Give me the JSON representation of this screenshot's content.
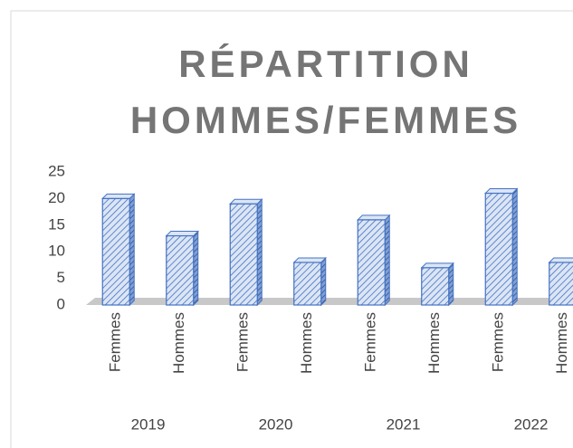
{
  "chart_data": {
    "type": "bar",
    "title": "RÉPARTITION HOMMES/FEMMES",
    "categories": [
      "Femmes",
      "Hommes",
      "Femmes",
      "Hommes",
      "Femmes",
      "Hommes",
      "Femmes",
      "Hommes"
    ],
    "groups": [
      "2019",
      "2020",
      "2021",
      "2022"
    ],
    "values": [
      20,
      13,
      19,
      8,
      16,
      7,
      21,
      8
    ],
    "color": "#4472c4",
    "ylim": [
      0,
      25
    ],
    "yticks": [
      0,
      5,
      10,
      15,
      20,
      25
    ],
    "grid": false
  }
}
